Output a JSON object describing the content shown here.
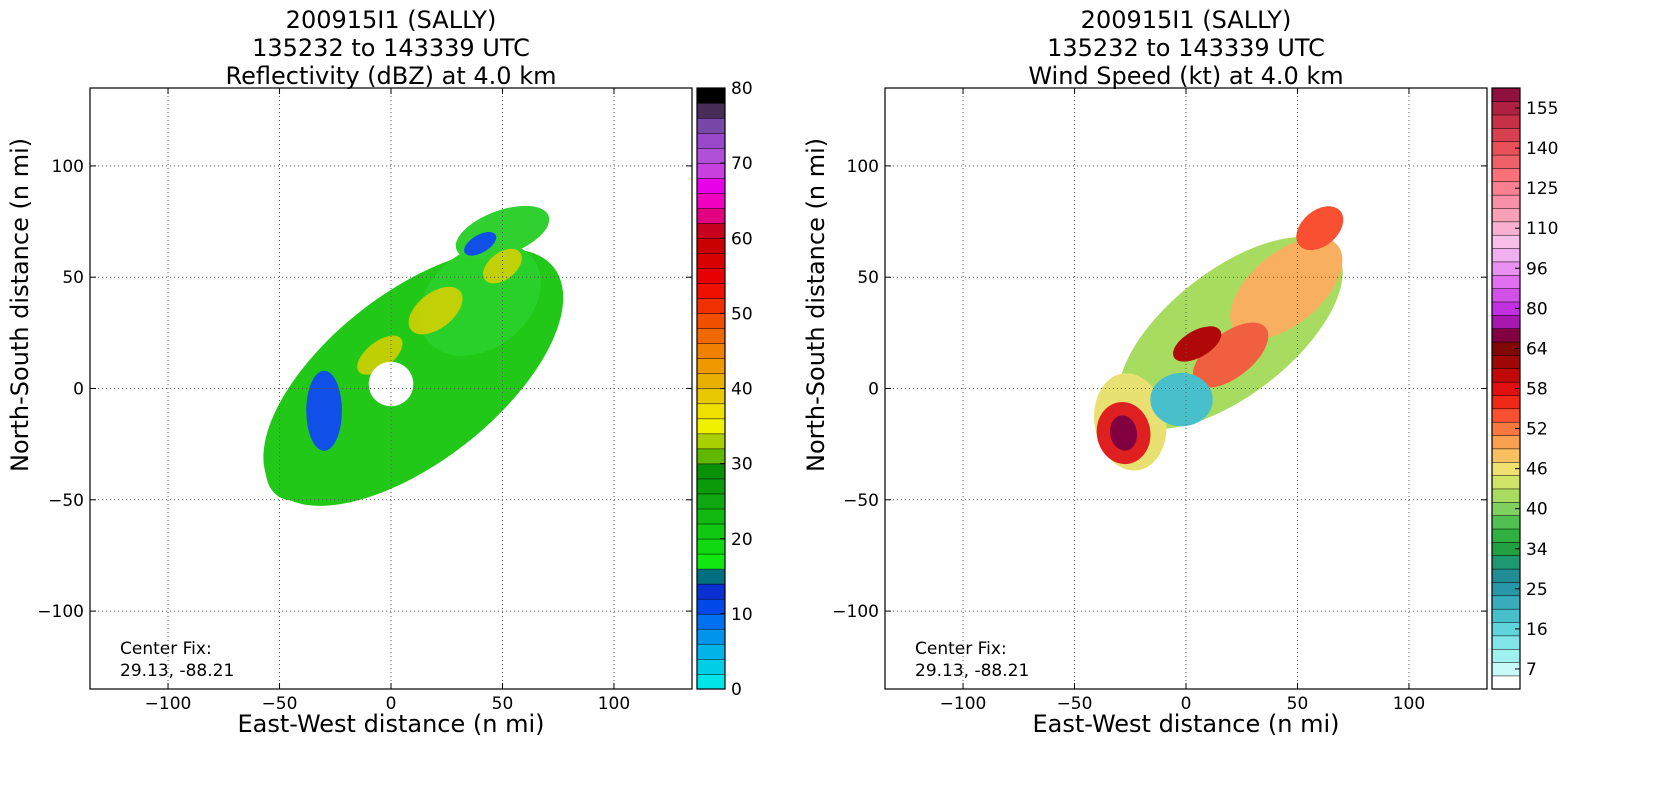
{
  "panels": [
    {
      "title": [
        "200915I1 (SALLY)",
        "135232 to 143339 UTC",
        "Reflectivity (dBZ) at 4.0 km"
      ],
      "xlabel": "East-West distance (n mi)",
      "ylabel": "North-South distance (n mi)",
      "center_fix_label": "Center Fix:",
      "center_fix_value": "29.13, -88.21"
    },
    {
      "title": [
        "200915I1 (SALLY)",
        "135232 to 143339 UTC",
        "Wind Speed (kt) at 4.0 km"
      ],
      "xlabel": "East-West distance (n mi)",
      "ylabel": "North-South distance (n mi)",
      "center_fix_label": "Center Fix:",
      "center_fix_value": "29.13, -88.21"
    }
  ],
  "chart_data": [
    {
      "type": "heatmap",
      "field": "reflectivity",
      "xlim": [
        -135,
        135
      ],
      "ylim": [
        -135,
        135
      ],
      "xticks": [
        -100,
        -50,
        0,
        50,
        100
      ],
      "yticks": [
        -100,
        -50,
        0,
        50,
        100
      ],
      "xtick_labels": [
        "−100",
        "−50",
        "0",
        "50",
        "100"
      ],
      "ytick_labels": [
        "−100",
        "−50",
        "0",
        "50",
        "100"
      ],
      "grid": true,
      "colorbar": {
        "min": 0,
        "max": 80,
        "tick_values": [
          0,
          10,
          20,
          30,
          40,
          50,
          60,
          70,
          80
        ],
        "tick_labels": [
          "0",
          "10",
          "20",
          "30",
          "40",
          "50",
          "60",
          "70",
          "80"
        ],
        "colors": [
          "#00e5e8",
          "#00cde6",
          "#00b4ea",
          "#0094ec",
          "#0070f0",
          "#0048e8",
          "#0a2fd0",
          "#007080",
          "#10e810",
          "#10d810",
          "#10c810",
          "#10b810",
          "#10a810",
          "#0a9a0a",
          "#089008",
          "#60b800",
          "#a8d000",
          "#f0f000",
          "#f0e000",
          "#e8c800",
          "#e8b000",
          "#f09800",
          "#f08000",
          "#f06800",
          "#f05000",
          "#f03000",
          "#f01000",
          "#e80000",
          "#d80000",
          "#c80000",
          "#c80020",
          "#e00080",
          "#f000c0",
          "#e800e8",
          "#c840e0",
          "#b050d8",
          "#9848c8",
          "#7848a8",
          "#482c58",
          "#000000"
        ]
      },
      "center_fix": [
        29.13,
        -88.21
      ]
    },
    {
      "type": "heatmap",
      "field": "wind_speed",
      "xlim": [
        -135,
        135
      ],
      "ylim": [
        -135,
        135
      ],
      "xticks": [
        -100,
        -50,
        0,
        50,
        100
      ],
      "yticks": [
        -100,
        -50,
        0,
        50,
        100
      ],
      "xtick_labels": [
        "−100",
        "−50",
        "0",
        "50",
        "100"
      ],
      "ytick_labels": [
        "−100",
        "−50",
        "0",
        "50",
        "100"
      ],
      "grid": true,
      "colorbar": {
        "tick_labels": [
          "7",
          "16",
          "25",
          "34",
          "40",
          "46",
          "52",
          "58",
          "64",
          "80",
          "96",
          "110",
          "125",
          "140",
          "155"
        ],
        "colors": [
          "#ffffff",
          "#c8fafa",
          "#a0f0f0",
          "#80e4e8",
          "#60d4dc",
          "#48c0cc",
          "#38acbc",
          "#2898a8",
          "#208c94",
          "#1e9870",
          "#20a040",
          "#30b040",
          "#50c050",
          "#80d060",
          "#a8dc60",
          "#d0e468",
          "#f0e070",
          "#f8c060",
          "#f8a050",
          "#f87840",
          "#f85030",
          "#f02818",
          "#e01010",
          "#c00808",
          "#a00808",
          "#800808",
          "#800040",
          "#a818b0",
          "#c030e0",
          "#d050e8",
          "#e070f0",
          "#e890f0",
          "#f0b0f0",
          "#f8c0e8",
          "#f8b0d0",
          "#f8a0b8",
          "#f890a8",
          "#f88090",
          "#f87078",
          "#f06068",
          "#e85058",
          "#d84050",
          "#c83048",
          "#b02040",
          "#901040"
        ]
      },
      "center_fix": [
        29.13,
        -88.21
      ]
    }
  ]
}
